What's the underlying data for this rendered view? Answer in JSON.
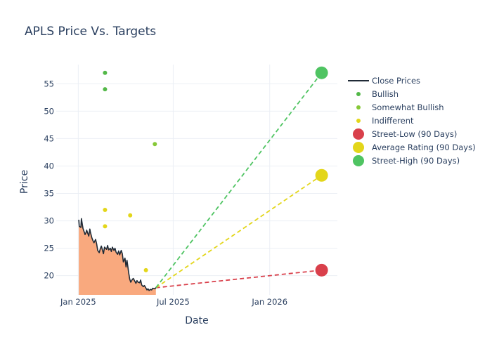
{
  "chart_data": {
    "type": "line",
    "title": "APLS Price Vs. Targets",
    "xlabel": "Date",
    "ylabel": "Price",
    "x_range": [
      "2024-11-20",
      "2026-05-10"
    ],
    "ylim": [
      16.5,
      58.5
    ],
    "x_ticks": [
      {
        "date": "2025-01-01",
        "label": "Jan 2025"
      },
      {
        "date": "2025-07-01",
        "label": "Jul 2025"
      },
      {
        "date": "2026-01-01",
        "label": "Jan 2026"
      }
    ],
    "y_ticks": [
      20,
      25,
      30,
      35,
      40,
      45,
      50,
      55
    ],
    "grid": true,
    "legend_position": "right",
    "close_prices": {
      "name": "Close Prices",
      "color": "#1f2a36",
      "fill_color": "#f9a97e",
      "x": [
        "2025-01-02",
        "2025-01-03",
        "2025-01-06",
        "2025-01-07",
        "2025-01-09",
        "2025-01-10",
        "2025-01-13",
        "2025-01-14",
        "2025-01-16",
        "2025-01-17",
        "2025-01-21",
        "2025-01-23",
        "2025-01-24",
        "2025-01-27",
        "2025-01-29",
        "2025-01-31",
        "2025-02-03",
        "2025-02-05",
        "2025-02-07",
        "2025-02-10",
        "2025-02-12",
        "2025-02-14",
        "2025-02-18",
        "2025-02-20",
        "2025-02-24",
        "2025-02-26",
        "2025-02-28",
        "2025-03-03",
        "2025-03-05",
        "2025-03-07",
        "2025-03-10",
        "2025-03-12",
        "2025-03-14",
        "2025-03-17",
        "2025-03-19",
        "2025-03-21",
        "2025-03-24",
        "2025-03-26",
        "2025-03-28",
        "2025-03-31",
        "2025-04-02",
        "2025-04-04",
        "2025-04-07",
        "2025-04-09",
        "2025-04-11",
        "2025-04-14",
        "2025-04-16",
        "2025-04-21",
        "2025-04-23",
        "2025-04-25",
        "2025-04-28",
        "2025-04-30",
        "2025-05-02",
        "2025-05-05",
        "2025-05-07",
        "2025-05-09",
        "2025-05-12",
        "2025-05-14",
        "2025-05-16",
        "2025-05-19",
        "2025-05-21",
        "2025-05-23",
        "2025-05-27",
        "2025-05-29"
      ],
      "y": [
        30.2,
        29.0,
        28.8,
        30.4,
        29.2,
        28.6,
        27.8,
        27.5,
        27.9,
        28.3,
        27.2,
        28.5,
        28.0,
        26.9,
        26.4,
        26.0,
        26.6,
        25.8,
        24.6,
        24.2,
        24.9,
        25.4,
        24.0,
        25.2,
        24.8,
        25.5,
        24.7,
        25.0,
        24.4,
        25.2,
        24.6,
        25.0,
        24.3,
        23.9,
        24.5,
        23.8,
        24.6,
        24.0,
        22.5,
        23.2,
        21.6,
        22.8,
        20.6,
        19.4,
        18.8,
        19.3,
        19.5,
        18.6,
        19.1,
        18.8,
        18.7,
        19.2,
        18.3,
        18.0,
        18.2,
        17.9,
        17.4,
        17.6,
        17.3,
        17.5,
        17.4,
        17.7,
        17.6,
        17.8
      ]
    },
    "analyst_ratings": [
      {
        "name": "Bullish",
        "color": "#53b848",
        "points": [
          {
            "x": "2025-02-21",
            "y": 57
          },
          {
            "x": "2025-02-21",
            "y": 54
          }
        ]
      },
      {
        "name": "Somewhat Bullish",
        "color": "#86c837",
        "points": [
          {
            "x": "2025-05-27",
            "y": 44
          }
        ]
      },
      {
        "name": "Indifferent",
        "color": "#e3d61a",
        "points": [
          {
            "x": "2025-02-21",
            "y": 32
          },
          {
            "x": "2025-02-21",
            "y": 29
          },
          {
            "x": "2025-04-10",
            "y": 31
          },
          {
            "x": "2025-05-10",
            "y": 21
          }
        ]
      }
    ],
    "targets": [
      {
        "name": "Street-Low (90 Days)",
        "color": "#d9404b",
        "start": {
          "x": "2025-05-29",
          "y": 17.8
        },
        "end": {
          "x": "2026-04-10",
          "y": 21
        }
      },
      {
        "name": "Average Rating (90 Days)",
        "color": "#e3d61a",
        "start": {
          "x": "2025-05-29",
          "y": 17.8
        },
        "end": {
          "x": "2026-04-10",
          "y": 38.3
        }
      },
      {
        "name": "Street-High (90 Days)",
        "color": "#4fc462",
        "start": {
          "x": "2025-05-29",
          "y": 17.8
        },
        "end": {
          "x": "2026-04-10",
          "y": 57
        }
      }
    ],
    "legend": [
      {
        "label": "Close Prices",
        "kind": "line",
        "color": "#1f2a36"
      },
      {
        "label": "Bullish",
        "kind": "dot",
        "color": "#53b848"
      },
      {
        "label": "Somewhat Bullish",
        "kind": "dot",
        "color": "#86c837"
      },
      {
        "label": "Indifferent",
        "kind": "dot",
        "color": "#e3d61a"
      },
      {
        "label": "Street-Low (90 Days)",
        "kind": "bigdot",
        "color": "#d9404b"
      },
      {
        "label": "Average Rating (90 Days)",
        "kind": "bigdot",
        "color": "#e3d61a"
      },
      {
        "label": "Street-High (90 Days)",
        "kind": "bigdot",
        "color": "#4fc462"
      }
    ]
  }
}
